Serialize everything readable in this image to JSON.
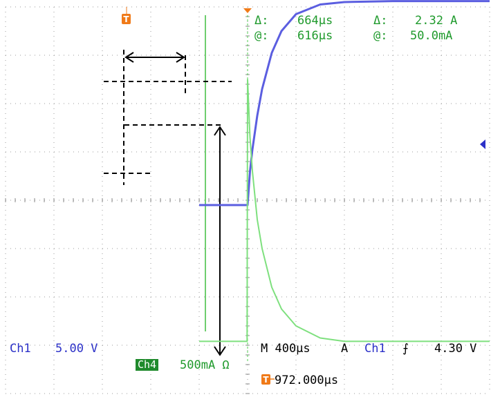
{
  "chart_data": {
    "type": "line",
    "title": "",
    "xlabel": "",
    "ylabel": "",
    "grid": true,
    "series": [
      {
        "channel": "Ch1",
        "color": "#5b5ee0",
        "x": [
          -1.0,
          0.0,
          0.05,
          0.1,
          0.2,
          0.3,
          0.5,
          0.7,
          1.0,
          1.5,
          2.0,
          3.0,
          4.0,
          5.0
        ],
        "y": [
          -0.1,
          -0.1,
          0.6,
          1.05,
          1.75,
          2.3,
          3.05,
          3.5,
          3.85,
          4.05,
          4.1,
          4.12,
          4.12,
          4.12
        ]
      },
      {
        "channel": "Ch4",
        "color": "#7ee07e",
        "x": [
          -1.0,
          -0.01,
          0.0,
          0.05,
          0.1,
          0.2,
          0.3,
          0.5,
          0.7,
          1.0,
          1.5,
          2.0,
          3.0,
          5.0
        ],
        "y": [
          -2.92,
          -2.92,
          2.5,
          1.3,
          0.6,
          -0.4,
          -1.0,
          -1.8,
          -2.25,
          -2.6,
          -2.85,
          -2.92,
          -2.92,
          -2.92
        ]
      }
    ],
    "x_unit_label": "div",
    "xlim": [
      -4.5,
      5.0
    ],
    "ylim": [
      -4.0,
      4.0
    ]
  },
  "readout": {
    "delta1_label": "Δ:",
    "delta1_value": "664μs",
    "at1_label": "@:",
    "at1_value": "616μs",
    "delta2_label": "Δ:",
    "delta2_value": "2.32 A",
    "at2_label": "@:",
    "at2_value": "50.0mA"
  },
  "status": {
    "ch1_label": "Ch1",
    "ch1_scale": "5.00 V",
    "ch4_label": "Ch4",
    "ch4_scale": "500mA Ω",
    "timebase": "M 400μs",
    "trigger_mode": "A",
    "trigger_source": "Ch1",
    "trigger_slope_symbol": "⨍",
    "trigger_level": "4.30 V",
    "trigger_marker": "T",
    "trigger_position": "972.000μs"
  },
  "colors": {
    "readout": "#1f9a2c",
    "ch1": "#2c31c8",
    "ch4_badge": "#1f8a2c",
    "trigger": "#f07a18"
  }
}
